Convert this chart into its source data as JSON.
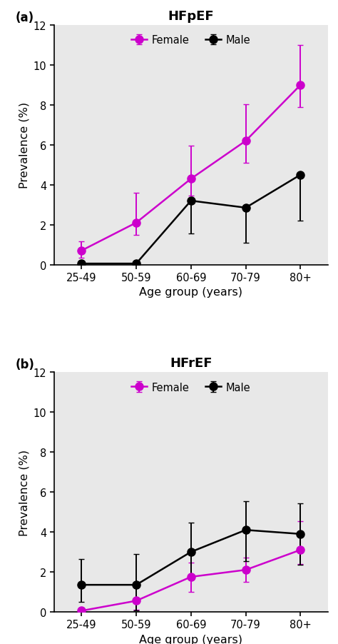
{
  "age_groups": [
    "25-49",
    "50-59",
    "60-69",
    "70-79",
    "80+"
  ],
  "hfpef": {
    "female_y": [
      0.7,
      2.1,
      4.3,
      6.2,
      9.0
    ],
    "female_yerr_lo": [
      0.35,
      0.6,
      0.85,
      1.1,
      1.1
    ],
    "female_yerr_hi": [
      0.45,
      1.5,
      1.65,
      1.85,
      2.0
    ],
    "male_y": [
      0.05,
      0.05,
      3.2,
      2.85,
      4.5
    ],
    "male_yerr_lo": [
      0.0,
      0.0,
      1.65,
      1.75,
      2.3
    ],
    "male_yerr_hi": [
      0.0,
      0.0,
      0.1,
      0.1,
      0.1
    ]
  },
  "hfref": {
    "female_y": [
      0.05,
      0.55,
      1.75,
      2.1,
      3.1
    ],
    "female_yerr_lo": [
      0.0,
      0.45,
      0.75,
      0.6,
      0.7
    ],
    "female_yerr_hi": [
      0.0,
      0.0,
      0.7,
      0.6,
      1.45
    ],
    "male_y": [
      1.35,
      1.35,
      3.0,
      4.1,
      3.9
    ],
    "male_yerr_lo": [
      0.85,
      1.3,
      1.3,
      1.55,
      1.55
    ],
    "male_yerr_hi": [
      1.3,
      1.55,
      1.45,
      1.45,
      1.55
    ]
  },
  "female_color": "#CC00CC",
  "male_color": "#000000",
  "bg_color": "#E8E8E8",
  "title_a": "HFpEF",
  "title_b": "HFrEF",
  "xlabel": "Age group (years)",
  "ylabel": "Prevalence (%)",
  "ylim": [
    0,
    12
  ],
  "yticks": [
    0,
    2,
    4,
    6,
    8,
    10,
    12
  ],
  "marker_size": 8,
  "line_width": 1.8,
  "capsize": 3,
  "elinewidth": 1.4
}
